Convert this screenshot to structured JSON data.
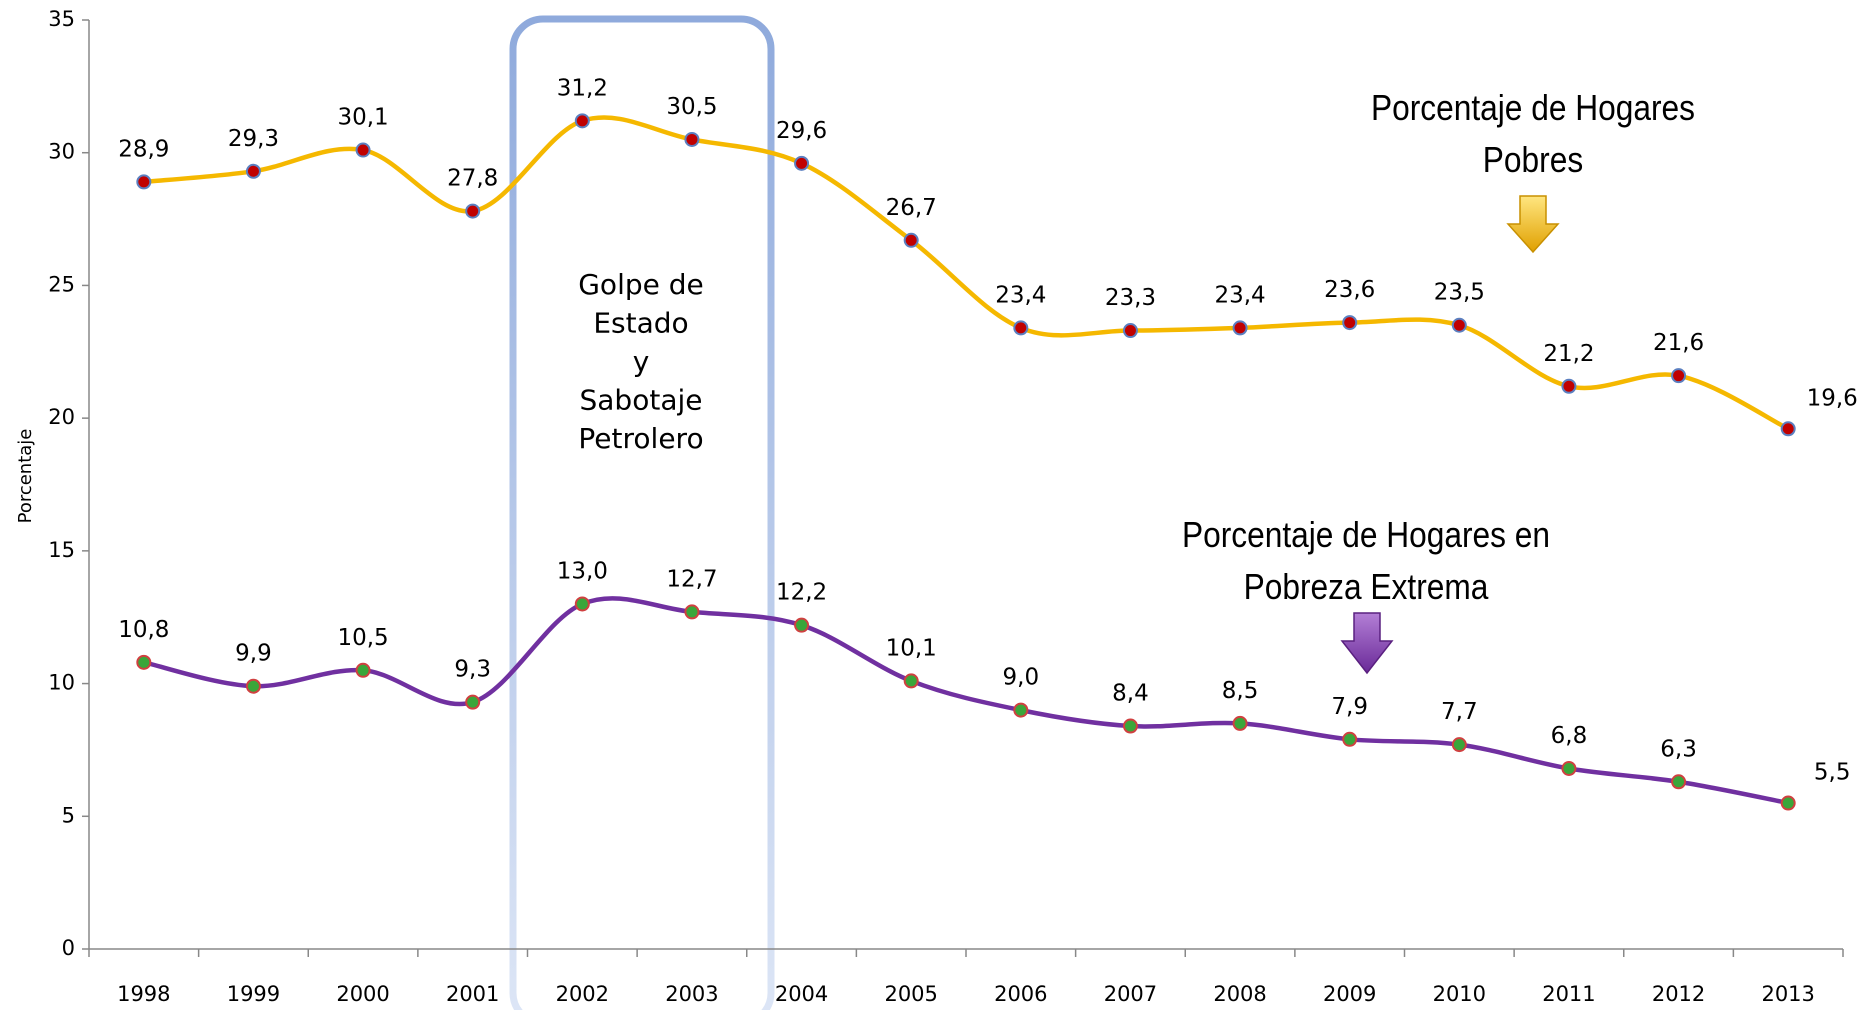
{
  "chart_data": {
    "type": "line",
    "categories": [
      "1998",
      "1999",
      "2000",
      "2001",
      "2002",
      "2003",
      "2004",
      "2005",
      "2006",
      "2007",
      "2008",
      "2009",
      "2010",
      "2011",
      "2012",
      "2013"
    ],
    "y_label": "Porcentaje",
    "ylim": [
      0,
      35
    ],
    "yticks": [
      0,
      5,
      10,
      15,
      20,
      25,
      30,
      35
    ],
    "annotation_lines": [
      "Golpe de",
      "Estado",
      "y",
      "Sabotaje",
      "Petrolero"
    ],
    "series": [
      {
        "name": "Porcentaje de Hogares Pobres",
        "color": "#f5b800",
        "marker_color": "#c00000",
        "marker_edge": "#5b7fc0",
        "values": [
          28.9,
          29.3,
          30.1,
          27.8,
          31.2,
          30.5,
          29.6,
          26.7,
          23.4,
          23.3,
          23.4,
          23.6,
          23.5,
          21.2,
          21.6,
          19.6
        ],
        "value_labels": [
          "28,9",
          "29,3",
          "30,1",
          "27,8",
          "31,2",
          "30,5",
          "29,6",
          "26,7",
          "23,4",
          "23,3",
          "23,4",
          "23,6",
          "23,5",
          "21,2",
          "21,6",
          "19,6"
        ]
      },
      {
        "name": "Porcentaje de Hogares en Pobreza Extrema",
        "color": "#7030a0",
        "marker_color": "#3aa63a",
        "marker_edge": "#d04040",
        "values": [
          10.8,
          9.9,
          10.5,
          9.3,
          13.0,
          12.7,
          12.2,
          10.1,
          9.0,
          8.4,
          8.5,
          7.9,
          7.7,
          6.8,
          6.3,
          5.5
        ],
        "value_labels": [
          "10,8",
          "9,9",
          "10,5",
          "9,3",
          "13,0",
          "12,7",
          "12,2",
          "10,1",
          "9,0",
          "8,4",
          "8,5",
          "7,9",
          "7,7",
          "6,8",
          "6,3",
          "5,5"
        ]
      }
    ]
  }
}
